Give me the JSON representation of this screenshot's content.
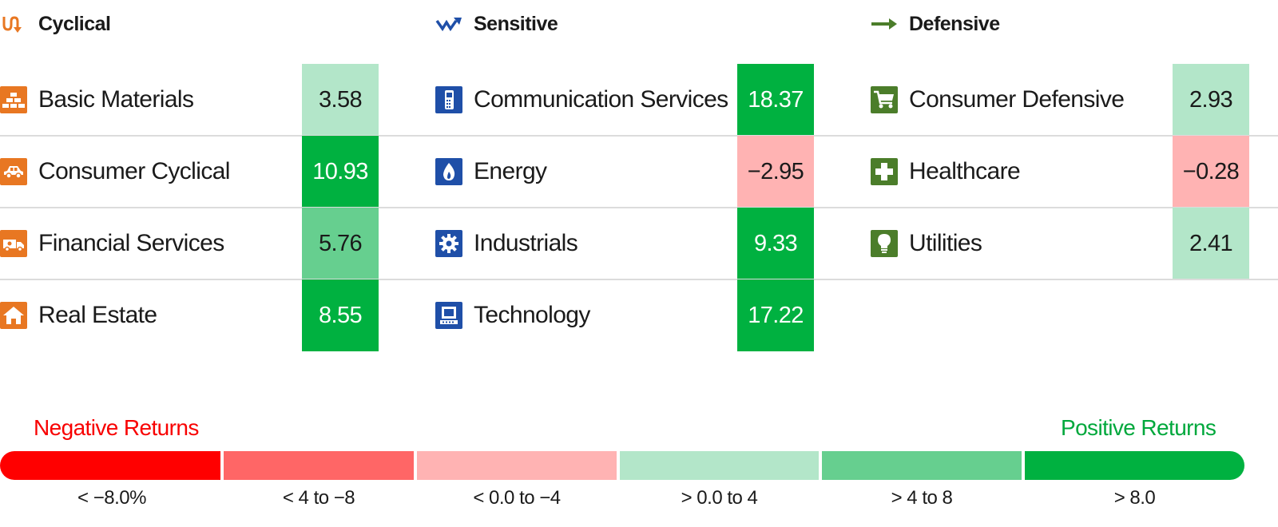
{
  "colors": {
    "cyclical": "#e87722",
    "sensitive": "#1f4fa8",
    "defensive": "#4b7d2a",
    "bins": [
      "#ff0000",
      "#ff6666",
      "#ffb3b3",
      "#b3e6c9",
      "#66cf8f",
      "#00b140"
    ],
    "negative_text": "#f80000",
    "positive_text": "#00a83c"
  },
  "chart_data": {
    "type": "table",
    "groups": [
      {
        "name": "Cyclical",
        "icon": "cyclical-arrow-icon",
        "sectors": [
          {
            "name": "Basic Materials",
            "value": 3.58,
            "label": "3.58",
            "icon": "gold-bars-icon"
          },
          {
            "name": "Consumer Cyclical",
            "value": 10.93,
            "label": "10.93",
            "icon": "car-icon"
          },
          {
            "name": "Financial Services",
            "value": 5.76,
            "label": "5.76",
            "icon": "money-truck-icon"
          },
          {
            "name": "Real Estate",
            "value": 8.55,
            "label": "8.55",
            "icon": "house-icon"
          }
        ]
      },
      {
        "name": "Sensitive",
        "icon": "sensitive-zigzag-icon",
        "sectors": [
          {
            "name": "Communication Services",
            "value": 18.37,
            "label": "18.37",
            "icon": "phone-icon"
          },
          {
            "name": "Energy",
            "value": -2.95,
            "label": "−2.95",
            "icon": "flame-icon"
          },
          {
            "name": "Industrials",
            "value": 9.33,
            "label": "9.33",
            "icon": "gear-icon"
          },
          {
            "name": "Technology",
            "value": 17.22,
            "label": "17.22",
            "icon": "computer-icon"
          }
        ]
      },
      {
        "name": "Defensive",
        "icon": "defensive-arrow-icon",
        "sectors": [
          {
            "name": "Consumer Defensive",
            "value": 2.93,
            "label": "2.93",
            "icon": "cart-icon"
          },
          {
            "name": "Healthcare",
            "value": -0.28,
            "label": "−0.28",
            "icon": "medical-cross-icon"
          },
          {
            "name": "Utilities",
            "value": 2.41,
            "label": "2.41",
            "icon": "lightbulb-icon"
          }
        ]
      }
    ],
    "legend": {
      "negative_label": "Negative Returns",
      "positive_label": "Positive Returns",
      "bins": [
        "< −8.0%",
        "< 4 to −8",
        "< 0.0 to −4",
        "> 0.0 to 4",
        "> 4 to 8",
        "> 8.0"
      ]
    }
  }
}
